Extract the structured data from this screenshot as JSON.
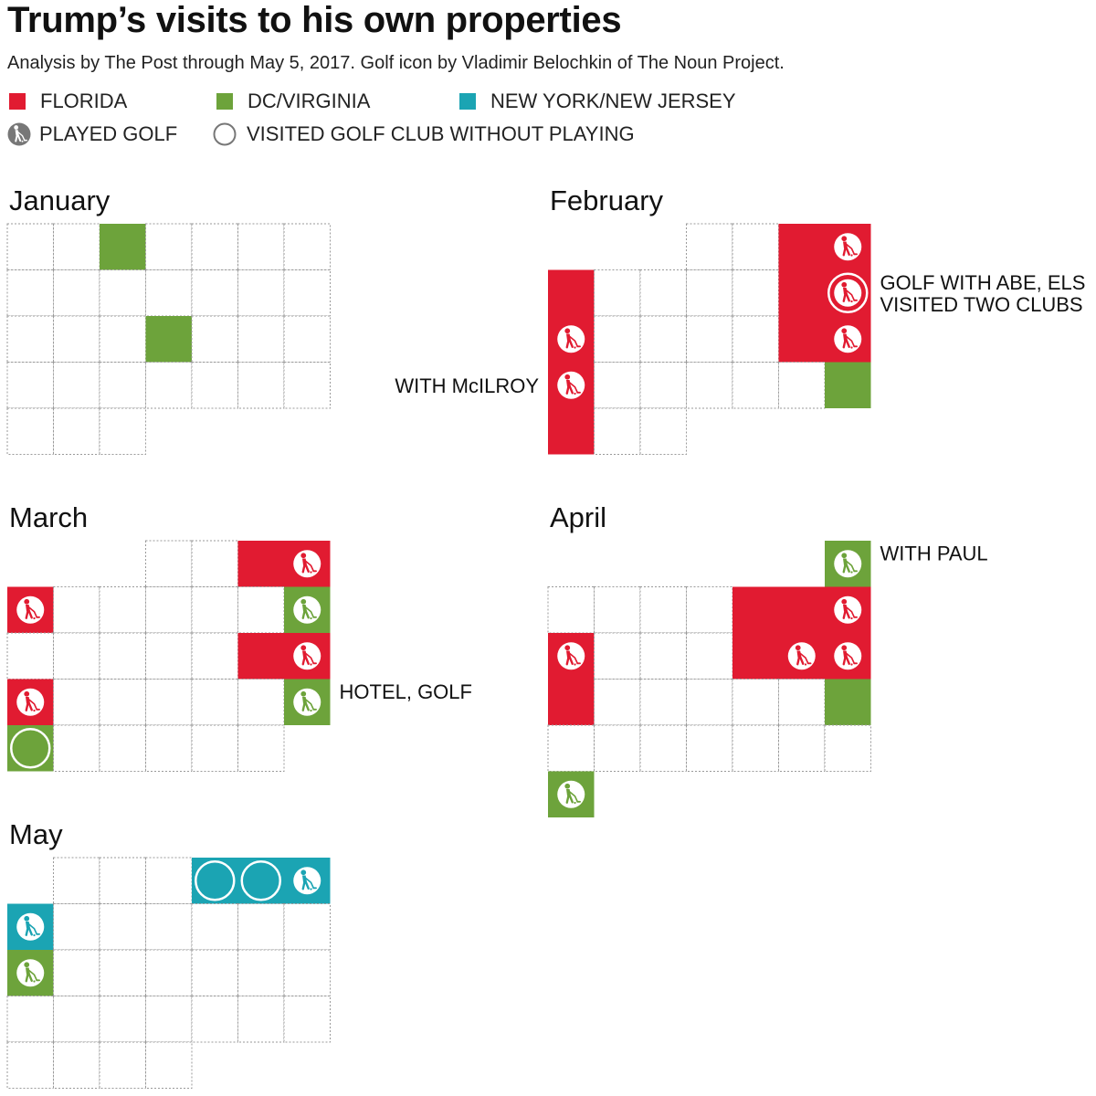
{
  "title": "Trump’s visits to his own properties",
  "subtitle": "Analysis by The Post through May 5, 2017. Golf icon by Vladimir Belochkin of The Noun Project.",
  "colors": {
    "florida": "#e11b31",
    "dc_virginia": "#6da33b",
    "ny_nj": "#1ba4b3",
    "empty": "#ffffff",
    "grid": "#9a9a9a",
    "golf_legend": "#777777"
  },
  "legend": {
    "florida": "FLORIDA",
    "dc_virginia": "DC/VIRGINIA",
    "ny_nj": "NEW YORK/NEW JERSEY",
    "played_golf": "PLAYED GOLF",
    "visited_no_play": "VISITED GOLF CLUB WITHOUT PLAYING",
    "played_golf_icon": "golfer-icon",
    "visited_icon": "ring-icon"
  },
  "chart_data": {
    "type": "calendar",
    "year": 2017,
    "week_starts": "Sunday",
    "months": [
      {
        "name": "January",
        "days": 31,
        "first_weekday": 0,
        "visits": [
          {
            "day": 3,
            "state": "dc_virginia",
            "golf": "none"
          },
          {
            "day": 18,
            "state": "dc_virginia",
            "golf": "none"
          }
        ],
        "annotations": []
      },
      {
        "name": "February",
        "days": 28,
        "first_weekday": 3,
        "visits": [
          {
            "day": 3,
            "state": "florida",
            "golf": "none"
          },
          {
            "day": 4,
            "state": "florida",
            "golf": "played"
          },
          {
            "day": 5,
            "state": "florida",
            "golf": "none"
          },
          {
            "day": 10,
            "state": "florida",
            "golf": "none"
          },
          {
            "day": 11,
            "state": "florida",
            "golf": "played_and_visited"
          },
          {
            "day": 12,
            "state": "florida",
            "golf": "played"
          },
          {
            "day": 17,
            "state": "florida",
            "golf": "none"
          },
          {
            "day": 18,
            "state": "florida",
            "golf": "played"
          },
          {
            "day": 19,
            "state": "florida",
            "golf": "played"
          },
          {
            "day": 25,
            "state": "dc_virginia",
            "golf": "none"
          },
          {
            "day": 26,
            "state": "florida",
            "golf": "none"
          }
        ],
        "annotations": [
          {
            "day": 11,
            "side": "right",
            "text": "GOLF WITH ABE, ELS",
            "line": 0
          },
          {
            "day": 11,
            "side": "right",
            "text": "VISITED TWO CLUBS",
            "line": 1
          },
          {
            "day": 19,
            "side": "left",
            "text": "WITH McILROY",
            "line": 0
          }
        ]
      },
      {
        "name": "March",
        "days": 31,
        "first_weekday": 3,
        "visits": [
          {
            "day": 3,
            "state": "florida",
            "golf": "none"
          },
          {
            "day": 4,
            "state": "florida",
            "golf": "played"
          },
          {
            "day": 5,
            "state": "florida",
            "golf": "played"
          },
          {
            "day": 11,
            "state": "dc_virginia",
            "golf": "played"
          },
          {
            "day": 17,
            "state": "florida",
            "golf": "none"
          },
          {
            "day": 18,
            "state": "florida",
            "golf": "played"
          },
          {
            "day": 19,
            "state": "florida",
            "golf": "played"
          },
          {
            "day": 25,
            "state": "dc_virginia",
            "golf": "played"
          },
          {
            "day": 26,
            "state": "dc_virginia",
            "golf": "visited"
          }
        ],
        "annotations": [
          {
            "day": 25,
            "side": "right",
            "text": "HOTEL, GOLF",
            "line": 0
          }
        ]
      },
      {
        "name": "April",
        "days": 30,
        "first_weekday": 6,
        "visits": [
          {
            "day": 1,
            "state": "dc_virginia",
            "golf": "played"
          },
          {
            "day": 6,
            "state": "florida",
            "golf": "none"
          },
          {
            "day": 7,
            "state": "florida",
            "golf": "none"
          },
          {
            "day": 8,
            "state": "florida",
            "golf": "played"
          },
          {
            "day": 9,
            "state": "florida",
            "golf": "played"
          },
          {
            "day": 13,
            "state": "florida",
            "golf": "none"
          },
          {
            "day": 14,
            "state": "florida",
            "golf": "played"
          },
          {
            "day": 15,
            "state": "florida",
            "golf": "played"
          },
          {
            "day": 16,
            "state": "florida",
            "golf": "none"
          },
          {
            "day": 22,
            "state": "dc_virginia",
            "golf": "none"
          },
          {
            "day": 30,
            "state": "dc_virginia",
            "golf": "played"
          }
        ],
        "annotations": [
          {
            "day": 1,
            "side": "right",
            "text": "WITH PAUL",
            "line": 0
          }
        ]
      },
      {
        "name": "May",
        "days": 31,
        "first_weekday": 1,
        "visits": [
          {
            "day": 4,
            "state": "ny_nj",
            "golf": "visited"
          },
          {
            "day": 5,
            "state": "ny_nj",
            "golf": "visited"
          },
          {
            "day": 6,
            "state": "ny_nj",
            "golf": "played"
          },
          {
            "day": 7,
            "state": "ny_nj",
            "golf": "played"
          },
          {
            "day": 14,
            "state": "dc_virginia",
            "golf": "played"
          }
        ],
        "annotations": []
      }
    ]
  }
}
